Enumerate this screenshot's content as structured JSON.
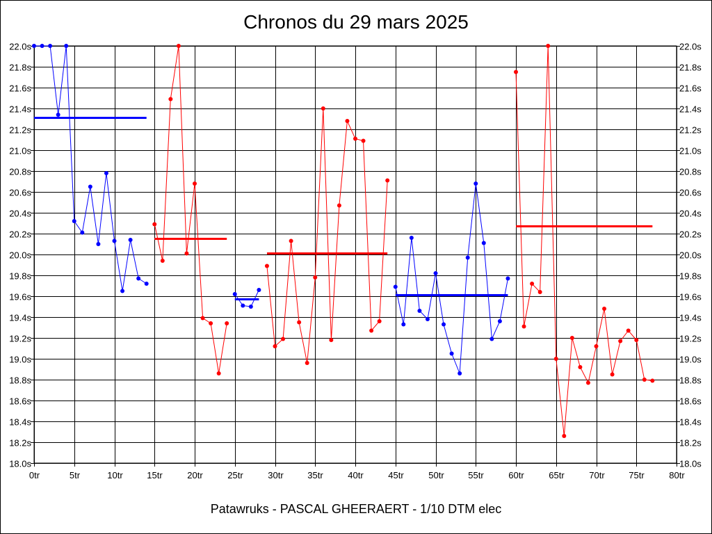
{
  "chart_data": {
    "type": "line",
    "title": "Chronos du 29 mars 2025",
    "subtitle": "Patawruks - PASCAL GHEERAERT - 1/10 DTM elec",
    "xlim": [
      0,
      80
    ],
    "ylim": [
      18.0,
      22.0
    ],
    "x_ticks": [
      "0tr",
      "5tr",
      "10tr",
      "15tr",
      "20tr",
      "25tr",
      "30tr",
      "35tr",
      "40tr",
      "45tr",
      "50tr",
      "55tr",
      "60tr",
      "65tr",
      "70tr",
      "75tr",
      "80tr"
    ],
    "y_ticks": [
      "18.0s",
      "18.2s",
      "18.4s",
      "18.6s",
      "18.8s",
      "19.0s",
      "19.2s",
      "19.4s",
      "19.6s",
      "19.8s",
      "20.0s",
      "20.2s",
      "20.4s",
      "20.6s",
      "20.8s",
      "21.0s",
      "21.2s",
      "21.4s",
      "21.6s",
      "21.8s",
      "22.0s"
    ],
    "grid": true,
    "series": [
      {
        "color": "#0000ff",
        "x": [
          0,
          1,
          2,
          3,
          4,
          5,
          6,
          7,
          8,
          9,
          10,
          11,
          12,
          13,
          14
        ],
        "y": [
          22.0,
          22.0,
          22.0,
          21.34,
          22.0,
          20.32,
          20.21,
          20.65,
          20.1,
          20.78,
          20.13,
          19.65,
          20.14,
          19.77,
          19.72
        ],
        "avg": 21.31
      },
      {
        "color": "#ff0000",
        "x": [
          15,
          16,
          17,
          18,
          19,
          20,
          21,
          22,
          23,
          24
        ],
        "y": [
          20.29,
          19.94,
          21.49,
          22.0,
          20.01,
          20.68,
          19.39,
          19.34,
          18.86,
          19.34
        ],
        "avg": 20.15
      },
      {
        "color": "#0000ff",
        "x": [
          25,
          26,
          27,
          28
        ],
        "y": [
          19.62,
          19.51,
          19.5,
          19.66
        ],
        "avg": 19.57
      },
      {
        "color": "#ff0000",
        "x": [
          29,
          30,
          31,
          32,
          33,
          34,
          35,
          36,
          37,
          38,
          39,
          40,
          41,
          42,
          43,
          44
        ],
        "y": [
          19.89,
          19.12,
          19.19,
          20.13,
          19.35,
          18.96,
          19.78,
          21.4,
          19.18,
          20.47,
          21.28,
          21.11,
          21.09,
          19.27,
          19.36,
          20.71
        ],
        "avg": 20.01
      },
      {
        "color": "#0000ff",
        "x": [
          45,
          46,
          47,
          48,
          49,
          50,
          51,
          52,
          53,
          54,
          55,
          56,
          57,
          58,
          59
        ],
        "y": [
          19.69,
          19.33,
          20.16,
          19.46,
          19.38,
          19.82,
          19.33,
          19.05,
          18.86,
          19.97,
          20.68,
          20.11,
          19.19,
          19.36,
          19.77
        ],
        "avg": 19.61
      },
      {
        "color": "#ff0000",
        "x": [
          60,
          61,
          62,
          63,
          64,
          65,
          66,
          67,
          68,
          69,
          70,
          71,
          72,
          73,
          74,
          75,
          76,
          77
        ],
        "y": [
          21.75,
          19.31,
          19.72,
          19.64,
          22.0,
          19.0,
          18.26,
          19.2,
          18.92,
          18.77,
          19.12,
          19.48,
          18.85,
          19.17,
          19.27,
          19.18,
          18.8,
          18.79
        ],
        "avg": 20.27
      }
    ]
  }
}
